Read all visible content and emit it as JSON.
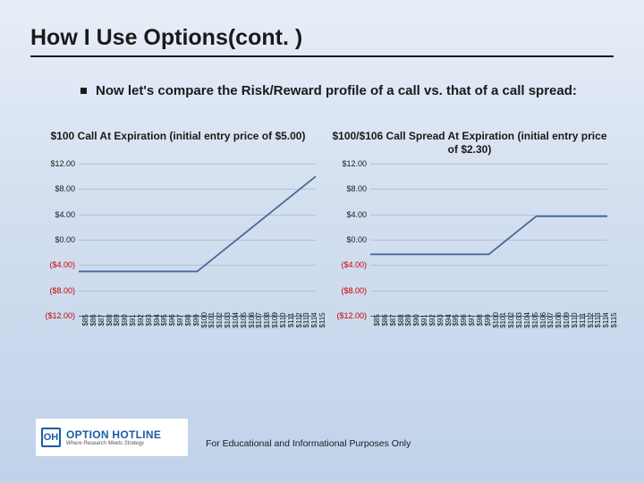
{
  "slide": {
    "title": "How I Use Options(cont. )",
    "bullet": "Now let's compare the Risk/Reward profile of a call vs. that of a call spread:",
    "footer": "For Educational and Informational Purposes Only",
    "background_gradient": [
      "#e8eef7",
      "#d4e0f0",
      "#c0d2ea"
    ]
  },
  "logo": {
    "badge": "OH",
    "main": "OPTION HOTLINE",
    "tagline": "Where Research Meets Strategy",
    "brand_color": "#1a5ca8"
  },
  "chart_style": {
    "grid_color": "#b5c2d4",
    "axis_color": "#5a6a7e",
    "line_color": "#4a6a9a",
    "line_width": 1.8,
    "neg_label_color": "#cc0000",
    "pos_label_color": "#1a1a1a",
    "title_fontsize": 12,
    "ytick_fontsize": 9,
    "xtick_fontsize": 8,
    "xtick_rotation": -90
  },
  "chart_left": {
    "type": "line",
    "title": "$100 Call At Expiration (initial entry price of $5.00)",
    "ylim": [
      -12,
      12
    ],
    "ytick_step": 4,
    "y_ticks": [
      {
        "v": 12,
        "label": "$12.00"
      },
      {
        "v": 8,
        "label": "$8.00"
      },
      {
        "v": 4,
        "label": "$4.00"
      },
      {
        "v": 0,
        "label": "$0.00"
      },
      {
        "v": -4,
        "label": "($4.00)"
      },
      {
        "v": -8,
        "label": "($8.00)"
      },
      {
        "v": -12,
        "label": "($12.00)"
      }
    ],
    "x_prices": [
      85,
      86,
      87,
      88,
      89,
      90,
      91,
      92,
      93,
      94,
      95,
      96,
      97,
      98,
      99,
      100,
      101,
      102,
      103,
      104,
      105,
      106,
      107,
      108,
      109,
      110,
      111,
      112,
      113,
      114,
      115
    ],
    "series": [
      {
        "x": 85,
        "y": -5.0
      },
      {
        "x": 100,
        "y": -5.0
      },
      {
        "x": 115,
        "y": 10.0
      }
    ]
  },
  "chart_right": {
    "type": "line",
    "title": "$100/$106 Call Spread At Expiration (initial entry price of $2.30)",
    "ylim": [
      -12,
      12
    ],
    "ytick_step": 4,
    "y_ticks": [
      {
        "v": 12,
        "label": "$12.00"
      },
      {
        "v": 8,
        "label": "$8.00"
      },
      {
        "v": 4,
        "label": "$4.00"
      },
      {
        "v": 0,
        "label": "$0.00"
      },
      {
        "v": -4,
        "label": "($4.00)"
      },
      {
        "v": -8,
        "label": "($8.00)"
      },
      {
        "v": -12,
        "label": "($12.00)"
      }
    ],
    "x_prices": [
      85,
      86,
      87,
      88,
      89,
      90,
      91,
      92,
      93,
      94,
      95,
      96,
      97,
      98,
      99,
      100,
      101,
      102,
      103,
      104,
      105,
      106,
      107,
      108,
      109,
      110,
      111,
      112,
      113,
      114,
      115
    ],
    "series": [
      {
        "x": 85,
        "y": -2.3
      },
      {
        "x": 100,
        "y": -2.3
      },
      {
        "x": 106,
        "y": 3.7
      },
      {
        "x": 115,
        "y": 3.7
      }
    ]
  }
}
